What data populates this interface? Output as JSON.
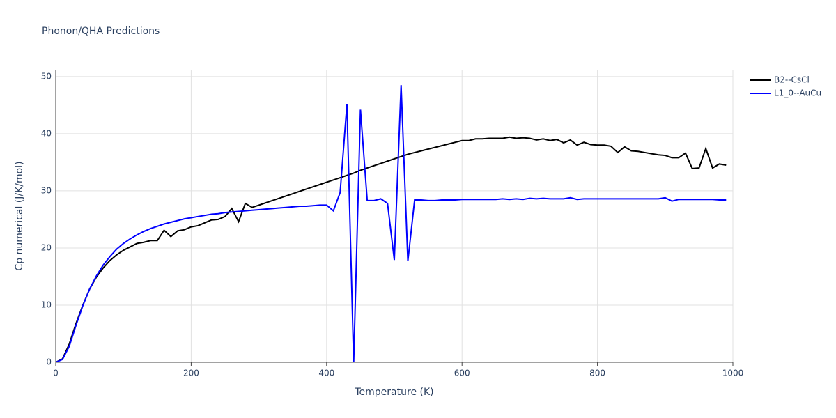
{
  "chart_data": {
    "type": "line",
    "title": "Phonon/QHA Predictions",
    "x_label": "Temperature (K)",
    "y_label": "Cp numerical (J/K/mol)",
    "x": [
      0,
      10,
      20,
      30,
      40,
      50,
      60,
      70,
      80,
      90,
      100,
      110,
      120,
      130,
      140,
      150,
      160,
      170,
      180,
      190,
      200,
      210,
      220,
      230,
      240,
      250,
      260,
      270,
      280,
      290,
      300,
      310,
      320,
      330,
      340,
      350,
      360,
      370,
      380,
      390,
      400,
      410,
      420,
      430,
      440,
      450,
      460,
      470,
      480,
      490,
      500,
      510,
      520,
      530,
      540,
      550,
      560,
      570,
      580,
      590,
      600,
      610,
      620,
      630,
      640,
      650,
      660,
      670,
      680,
      690,
      700,
      710,
      720,
      730,
      740,
      750,
      760,
      770,
      780,
      790,
      800,
      810,
      820,
      830,
      840,
      850,
      860,
      870,
      880,
      890,
      900,
      910,
      920,
      930,
      940,
      950,
      960,
      970,
      980,
      990
    ],
    "series": [
      {
        "name": "B2--CsCl",
        "color": "#000000",
        "values": [
          0,
          0.6,
          3.2,
          6.8,
          10.0,
          12.8,
          14.9,
          16.5,
          17.8,
          18.8,
          19.6,
          20.2,
          20.8,
          21.0,
          21.3,
          21.3,
          23.1,
          22.0,
          23.0,
          23.2,
          23.7,
          23.9,
          24.4,
          24.9,
          25.0,
          25.5,
          26.9,
          24.6,
          27.8,
          27.1,
          27.5,
          27.9,
          28.3,
          28.7,
          29.1,
          29.5,
          29.9,
          30.3,
          30.7,
          31.1,
          31.5,
          31.9,
          32.3,
          32.7,
          33.1,
          33.6,
          34.0,
          34.4,
          34.8,
          35.2,
          35.6,
          36.0,
          36.4,
          36.7,
          37.0,
          37.3,
          37.6,
          37.9,
          38.2,
          38.5,
          38.8,
          38.8,
          39.1,
          39.1,
          39.2,
          39.2,
          39.2,
          39.4,
          39.2,
          39.3,
          39.2,
          38.9,
          39.1,
          38.8,
          39.0,
          38.4,
          38.9,
          38.0,
          38.5,
          38.1,
          38.0,
          38.0,
          37.8,
          36.7,
          37.7,
          37.0,
          36.9,
          36.7,
          36.5,
          36.3,
          36.2,
          35.8,
          35.8,
          36.6,
          33.9,
          34.0,
          37.4,
          34.0,
          34.7,
          34.5
        ]
      },
      {
        "name": "L1_0--AuCu",
        "color": "#0000ff",
        "values": [
          0,
          0.5,
          2.8,
          6.5,
          9.9,
          12.8,
          15.1,
          17.0,
          18.5,
          19.8,
          20.8,
          21.6,
          22.3,
          22.9,
          23.4,
          23.8,
          24.2,
          24.5,
          24.8,
          25.1,
          25.3,
          25.5,
          25.7,
          25.9,
          26.0,
          26.2,
          26.3,
          26.4,
          26.5,
          26.6,
          26.7,
          26.8,
          26.9,
          27.0,
          27.1,
          27.2,
          27.3,
          27.3,
          27.4,
          27.5,
          27.5,
          26.5,
          29.7,
          45.1,
          0,
          44.2,
          28.3,
          28.3,
          28.6,
          27.8,
          17.9,
          48.5,
          17.7,
          28.4,
          28.4,
          28.3,
          28.3,
          28.4,
          28.4,
          28.4,
          28.5,
          28.5,
          28.5,
          28.5,
          28.5,
          28.5,
          28.6,
          28.5,
          28.6,
          28.5,
          28.7,
          28.6,
          28.7,
          28.6,
          28.6,
          28.6,
          28.8,
          28.5,
          28.6,
          28.6,
          28.6,
          28.6,
          28.6,
          28.6,
          28.6,
          28.6,
          28.6,
          28.6,
          28.6,
          28.6,
          28.8,
          28.2,
          28.5,
          28.5,
          28.5,
          28.5,
          28.5,
          28.5,
          28.4,
          28.4
        ]
      }
    ],
    "xlim": [
      0,
      1000
    ],
    "xticks": [
      0,
      200,
      400,
      600,
      800,
      1000
    ],
    "ylim": [
      0,
      51.2
    ],
    "yticks": [
      0,
      10,
      20,
      30,
      40,
      50
    ],
    "grid": true,
    "legend": "right"
  }
}
